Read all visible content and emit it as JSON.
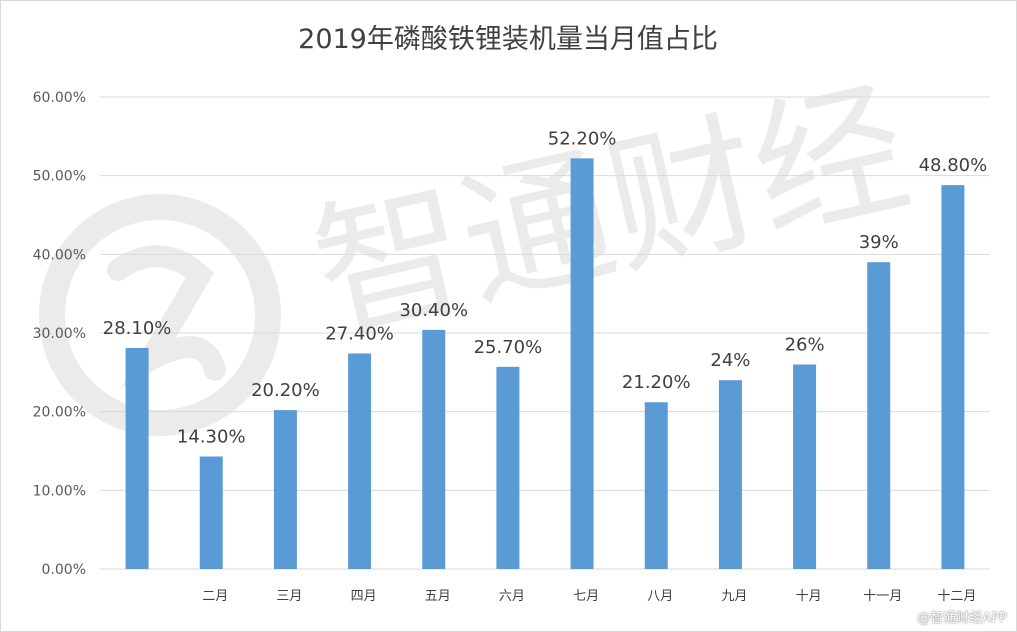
{
  "chart_data": {
    "type": "bar",
    "title": "2019年磷酸铁锂装机量当月值占比",
    "xlabel": "",
    "ylabel": "",
    "categories": [
      "",
      "二月",
      "三月",
      "四月",
      "五月",
      "六月",
      "七月",
      "八月",
      "九月",
      "十月",
      "十一月",
      "十二月"
    ],
    "values": [
      28.1,
      14.3,
      20.2,
      27.4,
      30.4,
      25.7,
      52.2,
      21.2,
      24,
      26,
      39,
      48.8
    ],
    "value_labels": [
      "28.10%",
      "14.30%",
      "20.20%",
      "27.40%",
      "30.40%",
      "25.70%",
      "52.20%",
      "21.20%",
      "24%",
      "26%",
      "39%",
      "48.80%"
    ],
    "y_ticks": [
      "0.00%",
      "10.00%",
      "20.00%",
      "30.00%",
      "40.00%",
      "50.00%",
      "60.00%"
    ],
    "ylim": [
      0,
      60
    ],
    "grid": true,
    "legend": "none",
    "bar_color": "#5b9bd5",
    "grid_color": "#d9d9d9"
  },
  "watermark": {
    "text": "智通财经",
    "color": "#ebebeb"
  },
  "credit": "@智通财经APP"
}
